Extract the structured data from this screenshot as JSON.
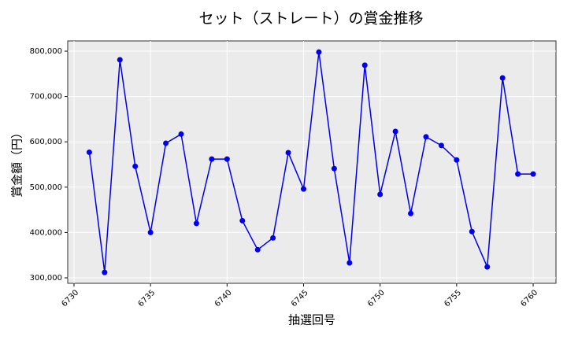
{
  "chart_data": {
    "type": "line",
    "title": "セット（ストレート）の賞金推移",
    "xlabel": "抽選回号",
    "ylabel": "賞金額（円）",
    "x": [
      6731,
      6732,
      6733,
      6734,
      6735,
      6736,
      6737,
      6738,
      6739,
      6740,
      6741,
      6742,
      6743,
      6744,
      6745,
      6746,
      6747,
      6748,
      6749,
      6750,
      6751,
      6752,
      6753,
      6754,
      6755,
      6756,
      6757,
      6758,
      6759,
      6760
    ],
    "values": [
      577000,
      312000,
      781000,
      546000,
      400000,
      597000,
      617000,
      420000,
      562000,
      562000,
      426000,
      362000,
      388000,
      576000,
      496000,
      798000,
      541000,
      333000,
      769000,
      484000,
      623000,
      442000,
      611000,
      592000,
      560000,
      402000,
      324000,
      741000,
      529000,
      529000
    ],
    "color": "#0000ee",
    "xlim": [
      6729.59,
      6761.49
    ],
    "xticks": [
      6730,
      6735,
      6740,
      6745,
      6750,
      6755,
      6760
    ],
    "ylim": [
      287850,
      822600
    ],
    "yticks": [
      {
        "value": 300000,
        "label": "300,000"
      },
      {
        "value": 400000,
        "label": "400,000"
      },
      {
        "value": 500000,
        "label": "500,000"
      },
      {
        "value": 600000,
        "label": "600,000"
      },
      {
        "value": 700000,
        "label": "700,000"
      },
      {
        "value": 800000,
        "label": "800,000"
      }
    ],
    "grid": true
  }
}
